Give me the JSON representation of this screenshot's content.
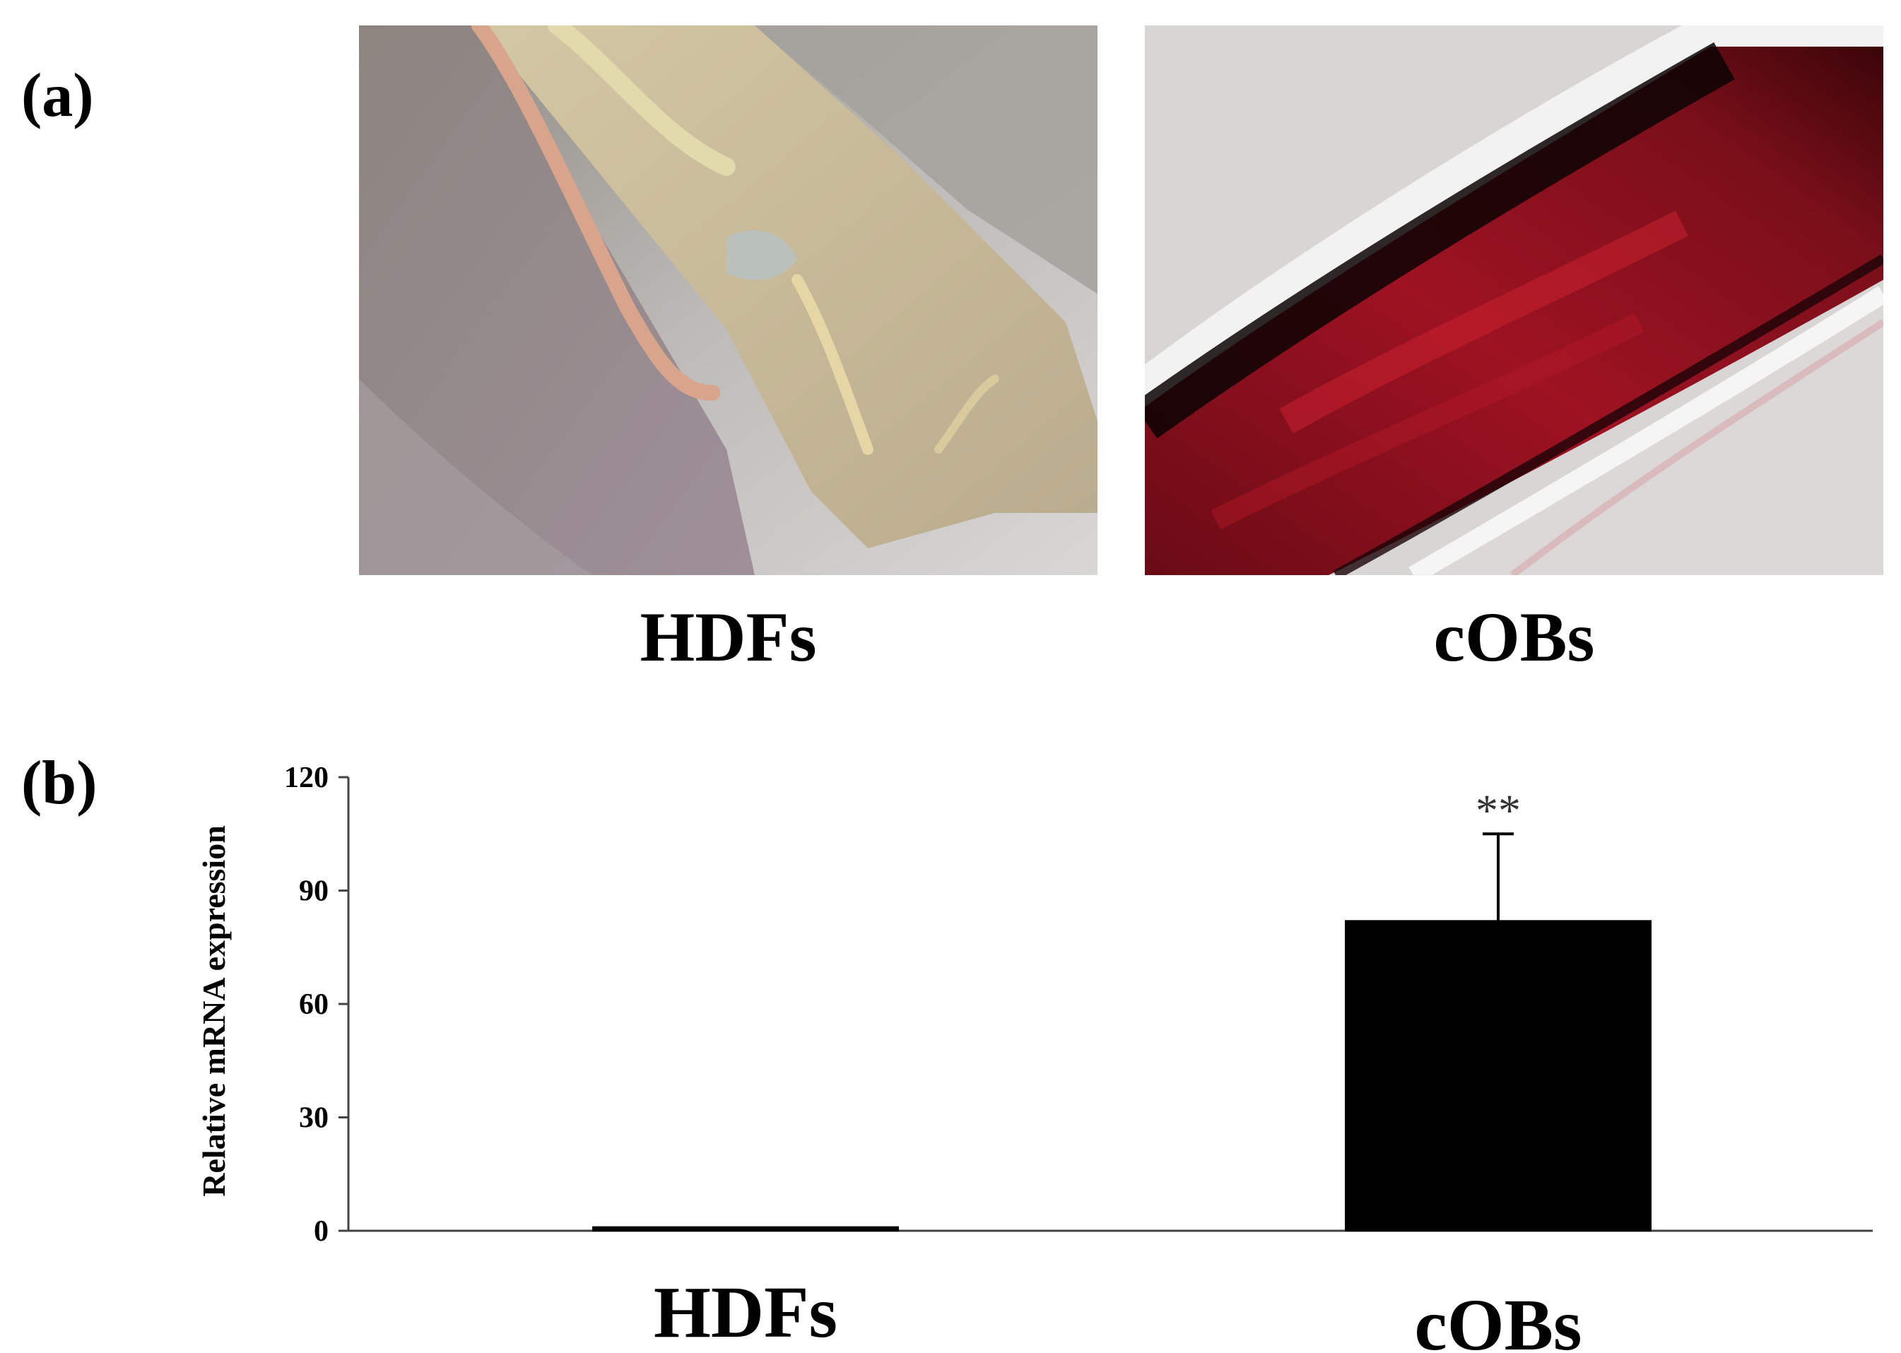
{
  "figure": {
    "panel_a_label": "(a)",
    "panel_b_label": "(b)",
    "image_captions": [
      "HDFs",
      "cOBs"
    ]
  },
  "chart_data": {
    "type": "bar",
    "categories": [
      "HDFs",
      "cOBs"
    ],
    "values": [
      1,
      82
    ],
    "errors": [
      0,
      23
    ],
    "significance": [
      "",
      "**"
    ],
    "ylabel": "Relative mRNA expression",
    "xlabel": "",
    "ylim": [
      0,
      120
    ],
    "yticks": [
      0,
      30,
      60,
      90,
      120
    ],
    "bar_color": "#000000",
    "grid": false
  }
}
